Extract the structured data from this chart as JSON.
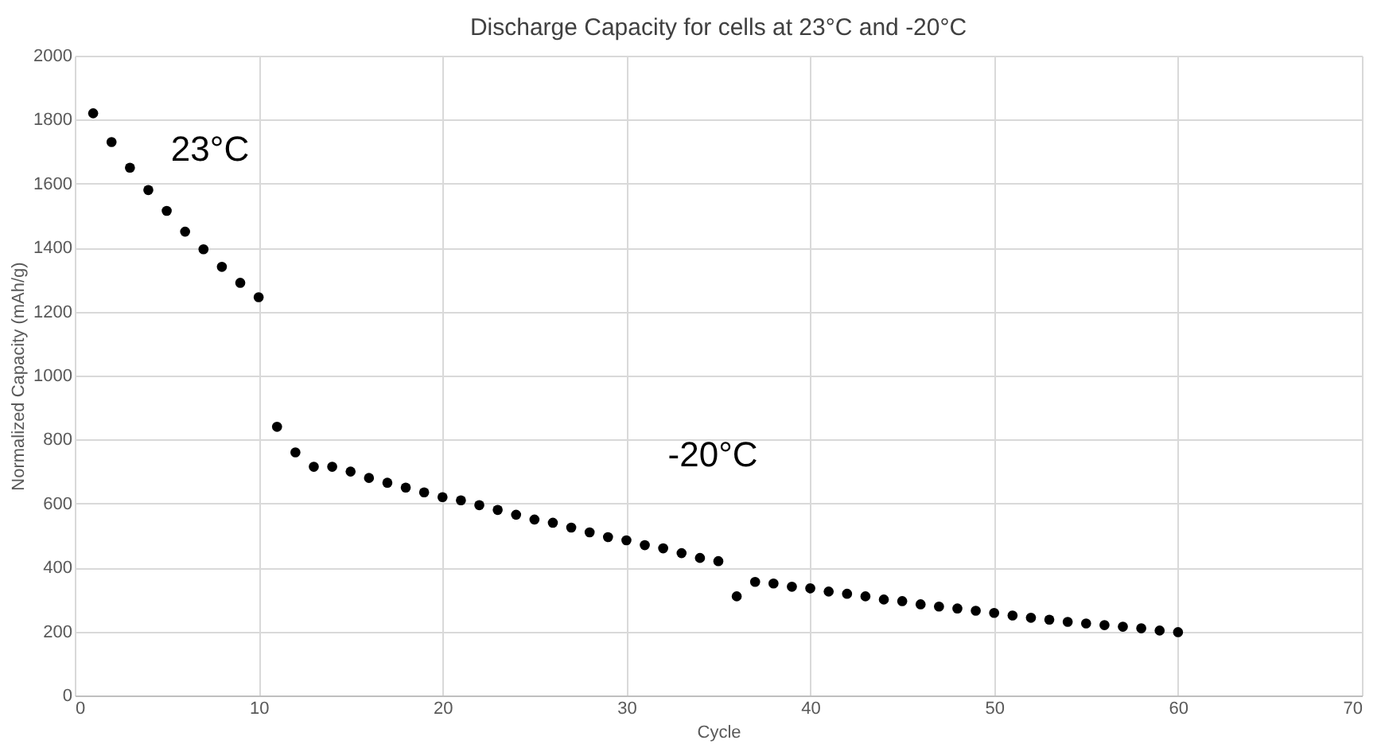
{
  "chart_data": {
    "type": "scatter",
    "title": "Discharge Capacity for cells at 23°C and -20°C",
    "xlabel": "Cycle",
    "ylabel": "Normalized Capacity (mAh/g)",
    "x": [
      1,
      2,
      3,
      4,
      5,
      6,
      7,
      8,
      9,
      10,
      11,
      12,
      13,
      14,
      15,
      16,
      17,
      18,
      19,
      20,
      21,
      22,
      23,
      24,
      25,
      26,
      27,
      28,
      29,
      30,
      31,
      32,
      33,
      34,
      35,
      36,
      37,
      38,
      39,
      40,
      41,
      42,
      43,
      44,
      45,
      46,
      47,
      48,
      49,
      50,
      51,
      52,
      53,
      54,
      55,
      56,
      57,
      58,
      59,
      60
    ],
    "series": [
      {
        "color": "#000000",
        "values": [
          1820,
          1730,
          1650,
          1580,
          1515,
          1450,
          1395,
          1340,
          1290,
          1245,
          840,
          760,
          715,
          715,
          700,
          680,
          665,
          650,
          635,
          620,
          610,
          595,
          580,
          565,
          550,
          540,
          525,
          510,
          495,
          485,
          470,
          460,
          445,
          430,
          420,
          310,
          355,
          350,
          340,
          335,
          325,
          318,
          310,
          300,
          295,
          285,
          278,
          272,
          265,
          258,
          250,
          243,
          237,
          230,
          225,
          220,
          215,
          210,
          203,
          198
        ]
      }
    ],
    "xlim": [
      0,
      70
    ],
    "xticks": [
      0,
      10,
      20,
      30,
      40,
      50,
      60,
      70
    ],
    "ylim": [
      0,
      2000
    ],
    "yticks": [
      0,
      200,
      400,
      600,
      800,
      1000,
      1200,
      1400,
      1600,
      1800,
      2000
    ],
    "grid": true,
    "marker": "circle",
    "legend": false,
    "annotations": [
      "23°C",
      "-20°C"
    ]
  }
}
